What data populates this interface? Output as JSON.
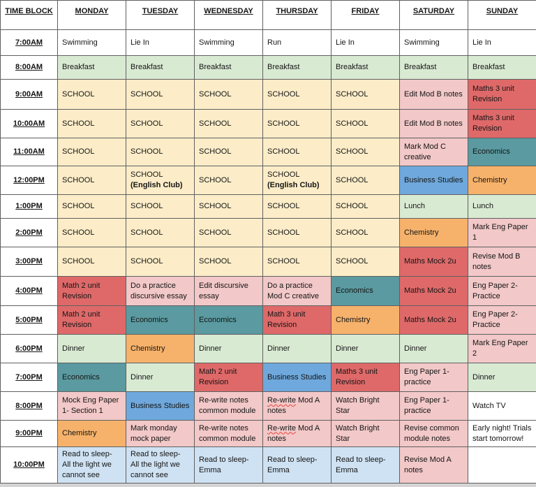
{
  "colors": {
    "white": "#ffffff",
    "green": "#d9ead3",
    "cream": "#fcedc8",
    "pink": "#f2c8c8",
    "red": "#df6969",
    "orange": "#f6b26b",
    "blue": "#6fa8dc",
    "teal": "#5a9aa0",
    "lightblue": "#cfe2f3"
  },
  "table": {
    "headers": [
      "TIME BLOCK",
      "MONDAY",
      "TUESDAY",
      "WEDNESDAY",
      "THURSDAY",
      "FRIDAY",
      "SATURDAY",
      "SUNDAY"
    ],
    "rows": [
      {
        "time": "7:00AM",
        "cells": [
          {
            "text": "Swimming",
            "color": "white"
          },
          {
            "text": "Lie In",
            "color": "white"
          },
          {
            "text": "Swimming",
            "color": "white"
          },
          {
            "text": "Run",
            "color": "white"
          },
          {
            "text": "Lie In",
            "color": "white"
          },
          {
            "text": "Swimming",
            "color": "white"
          },
          {
            "text": "Lie In",
            "color": "white"
          }
        ]
      },
      {
        "time": "8:00AM",
        "cells": [
          {
            "text": "Breakfast",
            "color": "green"
          },
          {
            "text": "Breakfast",
            "color": "green"
          },
          {
            "text": "Breakfast",
            "color": "green"
          },
          {
            "text": "Breakfast",
            "color": "green"
          },
          {
            "text": "Breakfast",
            "color": "green"
          },
          {
            "text": "Breakfast",
            "color": "green"
          },
          {
            "text": "Breakfast",
            "color": "green"
          }
        ]
      },
      {
        "time": "9:00AM",
        "cells": [
          {
            "text": "SCHOOL",
            "color": "cream"
          },
          {
            "text": "SCHOOL",
            "color": "cream"
          },
          {
            "text": "SCHOOL",
            "color": "cream"
          },
          {
            "text": "SCHOOL",
            "color": "cream"
          },
          {
            "text": "SCHOOL",
            "color": "cream"
          },
          {
            "text": "Edit Mod B notes",
            "color": "pink"
          },
          {
            "text": "Maths 3 unit Revision",
            "color": "red"
          }
        ]
      },
      {
        "time": "10:00AM",
        "cells": [
          {
            "text": "SCHOOL",
            "color": "cream"
          },
          {
            "text": "SCHOOL",
            "color": "cream"
          },
          {
            "text": "SCHOOL",
            "color": "cream"
          },
          {
            "text": "SCHOOL",
            "color": "cream"
          },
          {
            "text": "SCHOOL",
            "color": "cream"
          },
          {
            "text": "Edit Mod B notes",
            "color": "pink"
          },
          {
            "text": "Maths 3 unit Revision",
            "color": "red"
          }
        ]
      },
      {
        "time": "11:00AM",
        "cells": [
          {
            "text": "SCHOOL",
            "color": "cream"
          },
          {
            "text": "SCHOOL",
            "color": "cream"
          },
          {
            "text": "SCHOOL",
            "color": "cream"
          },
          {
            "text": "SCHOOL",
            "color": "cream"
          },
          {
            "text": "SCHOOL",
            "color": "cream"
          },
          {
            "text": "Mark Mod C creative",
            "color": "pink"
          },
          {
            "text": "Economics",
            "color": "teal"
          }
        ]
      },
      {
        "time": "12:00PM",
        "cells": [
          {
            "text": "SCHOOL",
            "color": "cream"
          },
          {
            "text": "SCHOOL ",
            "bold": "(English Club)",
            "color": "cream"
          },
          {
            "text": "SCHOOL",
            "color": "cream"
          },
          {
            "text": "SCHOOL ",
            "bold": "(English Club)",
            "color": "cream"
          },
          {
            "text": "SCHOOL",
            "color": "cream"
          },
          {
            "text": "Business Studies",
            "color": "blue"
          },
          {
            "text": "Chemistry",
            "color": "orange"
          }
        ]
      },
      {
        "time": "1:00PM",
        "cells": [
          {
            "text": "SCHOOL",
            "color": "cream"
          },
          {
            "text": "SCHOOL",
            "color": "cream"
          },
          {
            "text": "SCHOOL",
            "color": "cream"
          },
          {
            "text": "SCHOOL",
            "color": "cream"
          },
          {
            "text": "SCHOOL",
            "color": "cream"
          },
          {
            "text": "Lunch",
            "color": "green"
          },
          {
            "text": "Lunch",
            "color": "green"
          }
        ]
      },
      {
        "time": "2:00PM",
        "cells": [
          {
            "text": "SCHOOL",
            "color": "cream"
          },
          {
            "text": "SCHOOL",
            "color": "cream"
          },
          {
            "text": "SCHOOL",
            "color": "cream"
          },
          {
            "text": "SCHOOL",
            "color": "cream"
          },
          {
            "text": "SCHOOL",
            "color": "cream"
          },
          {
            "text": "Chemistry",
            "color": "orange"
          },
          {
            "text": "Mark Eng Paper 1",
            "color": "pink"
          }
        ]
      },
      {
        "time": "3:00PM",
        "cells": [
          {
            "text": "SCHOOL",
            "color": "cream"
          },
          {
            "text": "SCHOOL",
            "color": "cream"
          },
          {
            "text": "SCHOOL",
            "color": "cream"
          },
          {
            "text": "SCHOOL",
            "color": "cream"
          },
          {
            "text": "SCHOOL",
            "color": "cream"
          },
          {
            "text": "Maths Mock 2u",
            "color": "red"
          },
          {
            "text": "Revise Mod B notes",
            "color": "pink"
          }
        ]
      },
      {
        "time": "4:00PM",
        "cells": [
          {
            "text": "Math 2 unit Revision",
            "color": "red"
          },
          {
            "text": "Do a practice discursive essay",
            "color": "pink"
          },
          {
            "text": "Edit discursive essay",
            "color": "pink"
          },
          {
            "text": "Do a practice Mod C creative",
            "color": "pink"
          },
          {
            "text": "Economics",
            "color": "teal"
          },
          {
            "text": "Maths Mock 2u",
            "color": "red"
          },
          {
            "text": "Eng Paper 2- Practice",
            "color": "pink"
          }
        ]
      },
      {
        "time": "5:00PM",
        "cells": [
          {
            "text": "Math 2 unit Revision",
            "color": "red"
          },
          {
            "text": "Economics",
            "color": "teal"
          },
          {
            "text": "Economics",
            "color": "teal"
          },
          {
            "text": "Math 3 unit Revision",
            "color": "red"
          },
          {
            "text": "Chemistry",
            "color": "orange"
          },
          {
            "text": "Maths Mock 2u",
            "color": "red"
          },
          {
            "text": "Eng Paper 2- Practice",
            "color": "pink"
          }
        ]
      },
      {
        "time": "6:00PM",
        "cells": [
          {
            "text": "Dinner",
            "color": "green"
          },
          {
            "text": "Chemistry",
            "color": "orange"
          },
          {
            "text": "Dinner",
            "color": "green"
          },
          {
            "text": "Dinner",
            "color": "green"
          },
          {
            "text": "Dinner",
            "color": "green"
          },
          {
            "text": "Dinner",
            "color": "green"
          },
          {
            "text": "Mark Eng Paper 2",
            "color": "pink"
          }
        ]
      },
      {
        "time": "7:00PM",
        "cells": [
          {
            "text": "Economics",
            "color": "teal"
          },
          {
            "text": "Dinner",
            "color": "green"
          },
          {
            "text": "Math 2 unit Revision",
            "color": "red"
          },
          {
            "text": "Business Studies",
            "color": "blue"
          },
          {
            "text": "Maths 3 unit Revision",
            "color": "red"
          },
          {
            "text": "Eng Paper 1- practice",
            "color": "pink"
          },
          {
            "text": "Dinner",
            "color": "green"
          }
        ]
      },
      {
        "time": "8:00PM",
        "cells": [
          {
            "text": "Mock Eng Paper 1- Section 1",
            "color": "pink"
          },
          {
            "text": "Business Studies",
            "color": "blue"
          },
          {
            "text": "Re-write notes common module",
            "color": "pink"
          },
          {
            "squiggle": "Re-write",
            "text": " Mod A notes",
            "color": "pink"
          },
          {
            "text": "Watch Bright Star",
            "color": "pink"
          },
          {
            "text": "Eng Paper 1- practice",
            "color": "pink"
          },
          {
            "text": "Watch TV",
            "color": "white"
          }
        ]
      },
      {
        "time": "9:00PM",
        "cells": [
          {
            "text": "Chemistry",
            "color": "orange"
          },
          {
            "text": "Mark monday mock paper",
            "color": "pink"
          },
          {
            "text": "Re-write notes common module",
            "color": "pink"
          },
          {
            "squiggle": "Re-write",
            "text": " Mod A notes",
            "color": "pink"
          },
          {
            "text": "Watch Bright Star",
            "color": "pink"
          },
          {
            "text": "Revise common module notes",
            "color": "pink"
          },
          {
            "text": "Early night! Trials start tomorrow!",
            "color": "white"
          }
        ]
      },
      {
        "time": "10:00PM",
        "cells": [
          {
            "text": "Read to sleep- All the light we cannot see",
            "color": "lightblue"
          },
          {
            "text": "Read to sleep- All the light we cannot see",
            "color": "lightblue"
          },
          {
            "text": "Read to sleep- Emma",
            "color": "lightblue"
          },
          {
            "text": "Read to sleep- Emma",
            "color": "lightblue"
          },
          {
            "text": "Read to sleep- Emma",
            "color": "lightblue"
          },
          {
            "text": "Revise Mod A notes",
            "color": "pink"
          },
          {
            "text": "",
            "color": "white"
          }
        ]
      }
    ]
  }
}
